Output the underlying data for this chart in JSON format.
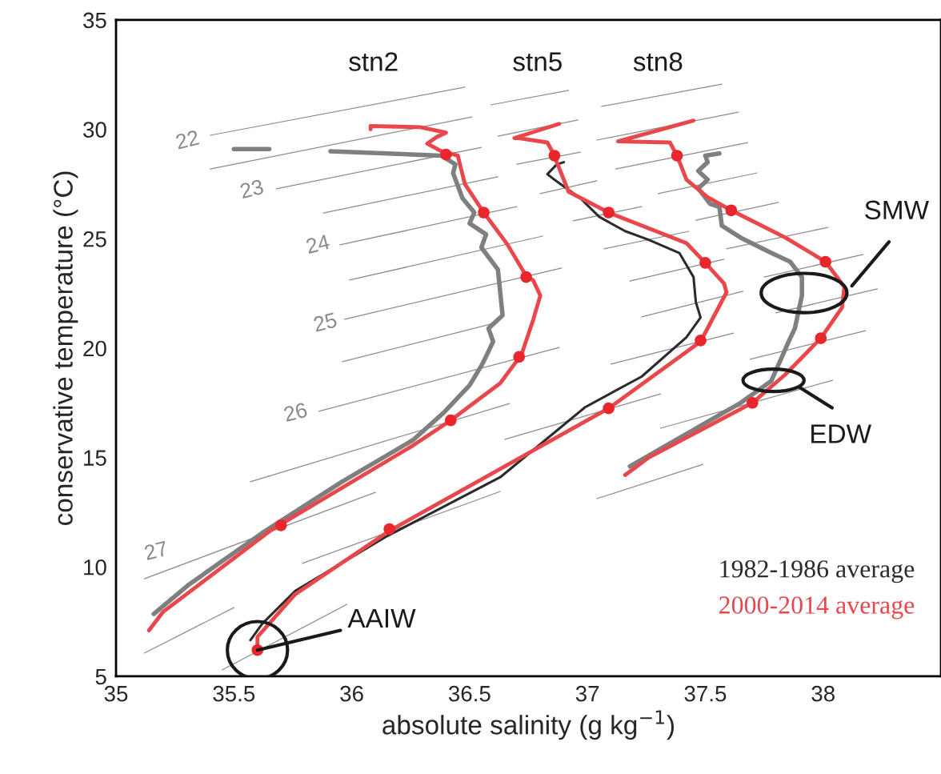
{
  "chart_data": {
    "type": "line",
    "xlabel": "absolute salinity (g kg$^{−1}$)",
    "ylabel": "conservative temperature (°C)",
    "xlim": [
      35,
      38.5
    ],
    "ylim": [
      5,
      35
    ],
    "xticks": [
      35,
      35.5,
      36,
      36.5,
      37,
      37.5,
      38
    ],
    "yticks": [
      5,
      10,
      15,
      20,
      25,
      30,
      35
    ],
    "grid": false,
    "legend": "bottom right",
    "series": [
      {
        "color": "#8c8c8c",
        "x": [
          35.4,
          36.48,
          null,
          35.4,
          36.51,
          null,
          35.68,
          36.55,
          null,
          35.88,
          36.62,
          null,
          35.95,
          36.7,
          null,
          35.99,
          36.81,
          null,
          35.97,
          36.89,
          null,
          35.96,
          36.6,
          null,
          35.86,
          36.88,
          null,
          35.57,
          36.67,
          null,
          35.12,
          36.1,
          null,
          35.79,
          36.63,
          null,
          35.12,
          35.5,
          null,
          35.45,
          35.98,
          null,
          36.65,
          37.31,
          null,
          37.1,
          37.62,
          null,
          37.04,
          37.49,
          null,
          37.69,
          38.18,
          null,
          36.59,
          36.92,
          null,
          36.62,
          36.96,
          null,
          36.7,
          36.97,
          null,
          36.8,
          37.04,
          null,
          36.94,
          37.23,
          null,
          37.07,
          37.43,
          null,
          37.18,
          37.58,
          null,
          37.23,
          37.66,
          null,
          37.06,
          37.57,
          null,
          37.04,
          37.64,
          null,
          37.12,
          37.68,
          null,
          37.3,
          37.72,
          null,
          37.46,
          37.81,
          null,
          37.59,
          38.02,
          null,
          37.75,
          38.17,
          null,
          37.8,
          38.23,
          null,
          37.31,
          38.04
        ],
        "values": [
          29.73,
          31.93,
          null,
          28.19,
          30.57,
          null,
          27.28,
          29.18,
          null,
          26.18,
          27.83,
          null,
          24.72,
          26.47,
          null,
          23.11,
          25.12,
          null,
          21.32,
          23.66,
          null,
          19.38,
          21.13,
          null,
          17.11,
          20.03,
          null,
          13.89,
          17.47,
          null,
          9.46,
          13.41,
          null,
          10.16,
          13.45,
          null,
          6.06,
          8.14,
          null,
          5.29,
          8.29,
          null,
          15.83,
          17.91,
          null,
          19.27,
          20.69,
          null,
          13.12,
          14.69,
          null,
          19.49,
          20.8,
          null,
          31.12,
          31.78,
          null,
          29.69,
          30.43,
          null,
          28.41,
          28.96,
          null,
          27.06,
          27.65,
          null,
          25.82,
          26.47,
          null,
          24.54,
          25.34,
          null,
          23.07,
          24.06,
          null,
          21.43,
          22.6,
          null,
          31.05,
          32.07,
          null,
          29.51,
          30.79,
          null,
          28.19,
          29.4,
          null,
          27.06,
          28.01,
          null,
          25.85,
          26.66,
          null,
          24.54,
          25.52,
          null,
          23.25,
          24.28,
          null,
          21.61,
          22.71,
          null,
          16.34,
          18.53
        ]
      },
      {
        "color": "#7f7f7f",
        "x": [
          35.16,
          35.31,
          35.62,
          35.96,
          36.26,
          36.39,
          36.5,
          36.55,
          36.56,
          36.6,
          36.58,
          36.64,
          36.62,
          36.55,
          36.57,
          36.5,
          36.52,
          36.47,
          36.43,
          36.44,
          36.38,
          35.91,
          null,
          35.65,
          35.5
        ],
        "values": [
          7.85,
          9.2,
          11.55,
          13.9,
          15.8,
          17.05,
          18.3,
          19.2,
          19.4,
          20.3,
          20.9,
          21.5,
          23.6,
          24.6,
          25.2,
          25.7,
          26.2,
          26.85,
          28.0,
          28.4,
          28.8,
          29.0,
          null,
          29.1,
          29.1
        ]
      },
      {
        "color": "#e8474b",
        "x": [
          35.14,
          35.2,
          35.66,
          36.26,
          36.42,
          36.63,
          36.72,
          36.77,
          36.8,
          36.77,
          36.74,
          36.66,
          36.56,
          36.48,
          36.45,
          36.38,
          36.32,
          36.36,
          36.4,
          36.29,
          36.08,
          36.08
        ],
        "values": [
          7.1,
          7.95,
          11.7,
          15.55,
          16.7,
          18.4,
          19.7,
          21.3,
          22.4,
          23.1,
          23.3,
          24.75,
          26.2,
          27.5,
          28.8,
          29.0,
          29.35,
          29.65,
          29.85,
          30.1,
          30.15,
          30.0
        ]
      },
      {
        "name": "1982-1986 average",
        "color": "#2b2b2b",
        "x": [
          35.57,
          35.62,
          35.76,
          36.14,
          36.63,
          36.99,
          37.23,
          37.42,
          37.48,
          37.46,
          37.45,
          37.39,
          37.26,
          37.16,
          37.05,
          36.97,
          36.86,
          36.83,
          36.87,
          36.9
        ],
        "values": [
          6.65,
          7.4,
          8.9,
          11.35,
          14.1,
          17.3,
          18.7,
          20.5,
          21.4,
          22.1,
          23.25,
          24.35,
          24.95,
          25.35,
          26.0,
          26.85,
          27.7,
          27.95,
          28.4,
          28.5
        ]
      },
      {
        "name": "2000-2014 average",
        "color": "#e8474b",
        "x": [
          35.6,
          35.6,
          35.76,
          36.16,
          37.09,
          37.48,
          37.59,
          37.58,
          37.5,
          37.42,
          37.09,
          36.92,
          36.87,
          36.86,
          36.83,
          36.71,
          36.69,
          36.88
        ],
        "values": [
          6.15,
          6.8,
          8.75,
          11.65,
          17.25,
          20.3,
          22.55,
          22.95,
          23.9,
          24.8,
          26.2,
          27.15,
          28.5,
          28.8,
          29.4,
          29.6,
          29.6,
          30.25
        ]
      },
      {
        "color": "#7f7f7f",
        "x": [
          37.18,
          37.65,
          37.78,
          37.86,
          37.88,
          37.91,
          37.91,
          37.86,
          37.78,
          37.65,
          37.57,
          37.56,
          37.52,
          37.47,
          37.51,
          37.47,
          37.51,
          37.5,
          37.56
        ],
        "values": [
          14.6,
          17.5,
          18.5,
          20.45,
          20.9,
          22.4,
          23.25,
          23.95,
          24.35,
          25.05,
          25.6,
          26.45,
          26.6,
          27.3,
          27.7,
          28.1,
          28.5,
          28.8,
          28.9
        ]
      },
      {
        "color": "#e8474b",
        "x": [
          37.16,
          37.26,
          37.7,
          37.84,
          37.99,
          38.08,
          38.09,
          38.01,
          37.84,
          37.61,
          37.51,
          37.42,
          37.38,
          37.35,
          37.13,
          37.45
        ],
        "values": [
          14.2,
          15.0,
          17.5,
          18.8,
          20.45,
          21.85,
          22.8,
          23.95,
          25.05,
          26.3,
          26.9,
          27.7,
          28.8,
          29.4,
          29.45,
          30.4
        ]
      },
      {
        "type": "scatter",
        "color": "#e8262c",
        "x": [
          35.7,
          36.42,
          36.71,
          36.74,
          36.56,
          36.4,
          35.6,
          36.16,
          37.09,
          37.48,
          37.5,
          37.09,
          36.86,
          37.7,
          37.99,
          38.01,
          37.61,
          37.38
        ],
        "values": [
          11.9,
          16.7,
          19.6,
          23.25,
          26.2,
          28.85,
          6.2,
          11.73,
          17.25,
          20.35,
          23.9,
          26.2,
          28.8,
          17.5,
          20.45,
          23.95,
          26.3,
          28.8
        ]
      }
    ],
    "annotations": [
      "22",
      "23",
      "24",
      "25",
      "26",
      "27",
      "stn2",
      "stn5",
      "stn8",
      "SMW",
      "EDW",
      {
        "text": "AAIW",
        "x": 35.6,
        "y": 6.2
      }
    ]
  }
}
